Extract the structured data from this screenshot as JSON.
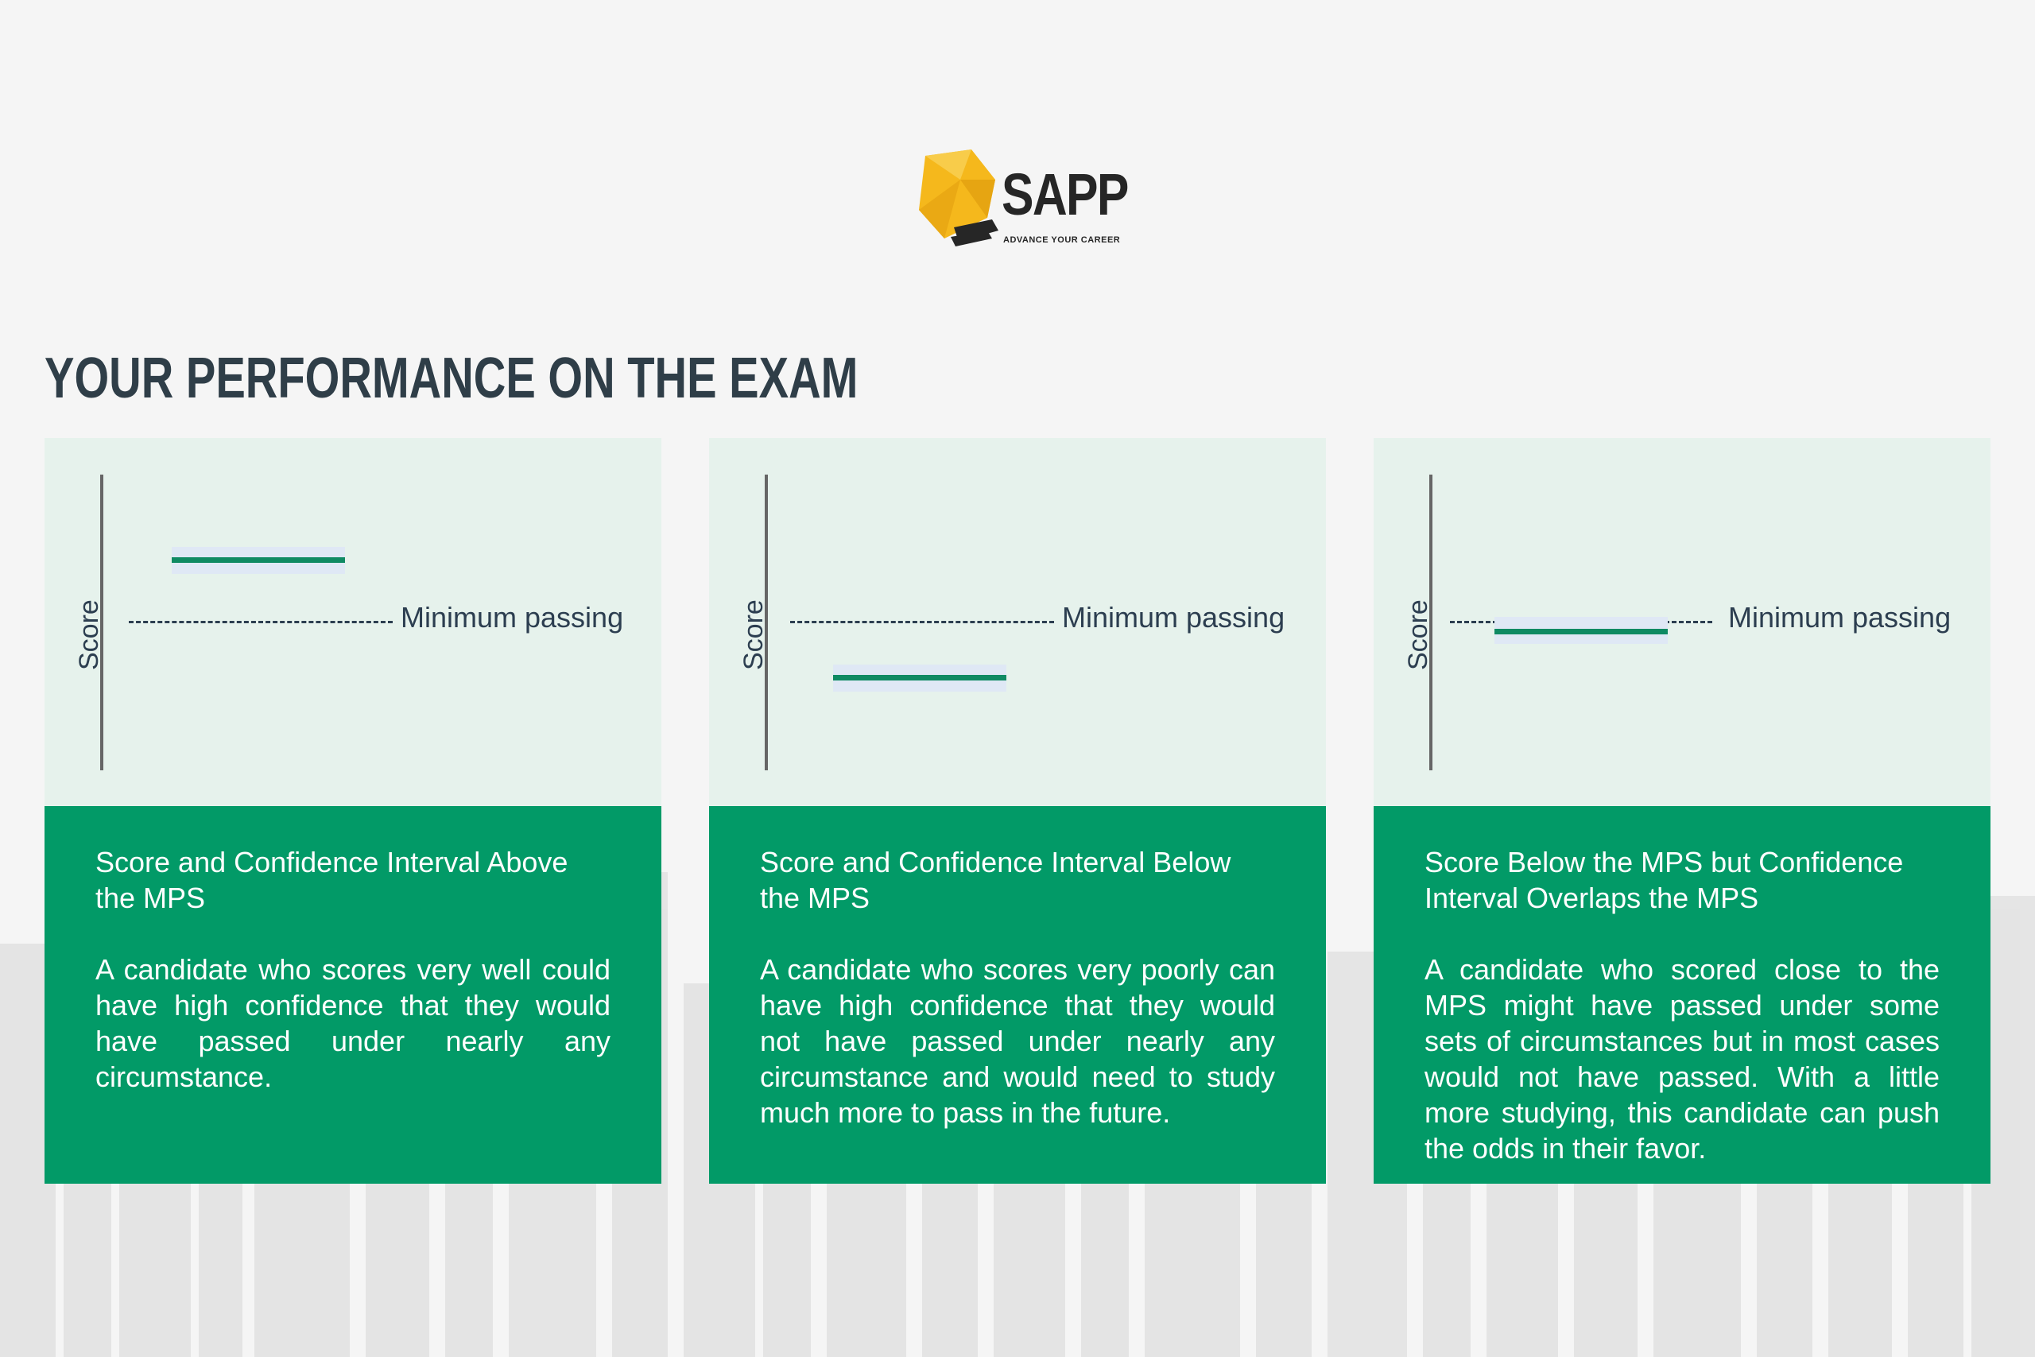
{
  "logo": {
    "wordmark": "SAPP",
    "tagline": "ADVANCE YOUR CAREER"
  },
  "title": "YOUR PERFORMANCE ON THE EXAM",
  "colors": {
    "background": "#f5f5f5",
    "chart_panel": "#e6f2ec",
    "text_panel": "#029a67",
    "score_bar": "#0f8a63",
    "confidence_band": "#dfe8f5",
    "mps_line": "#2c3e50",
    "title": "#2f3e48",
    "logo_yellow": "#f5b81c"
  },
  "cards": [
    {
      "axis_label": "Score",
      "mps_label": "Minimum passing",
      "title": "Score and Confidence Interval Above the MPS",
      "body": "A candidate who scores very well could have high confidence that they would have passed under nearly any circumstance."
    },
    {
      "axis_label": "Score",
      "mps_label": "Minimum passing",
      "title": "Score and Confidence Interval Below the MPS",
      "body": "A candidate who scores very poorly can have high confidence that they would not have passed under nearly any circumstance and would need to study much more to pass in the future."
    },
    {
      "axis_label": "Score",
      "mps_label": "Minimum passing",
      "title": "Score Below the MPS but Confidence Interval Overlaps the MPS",
      "body": "A candidate who scored close to the MPS might have passed under some sets of circumstances but in most cases would not have passed. With a little more studying, this candidate can push the odds in their favor."
    }
  ]
}
